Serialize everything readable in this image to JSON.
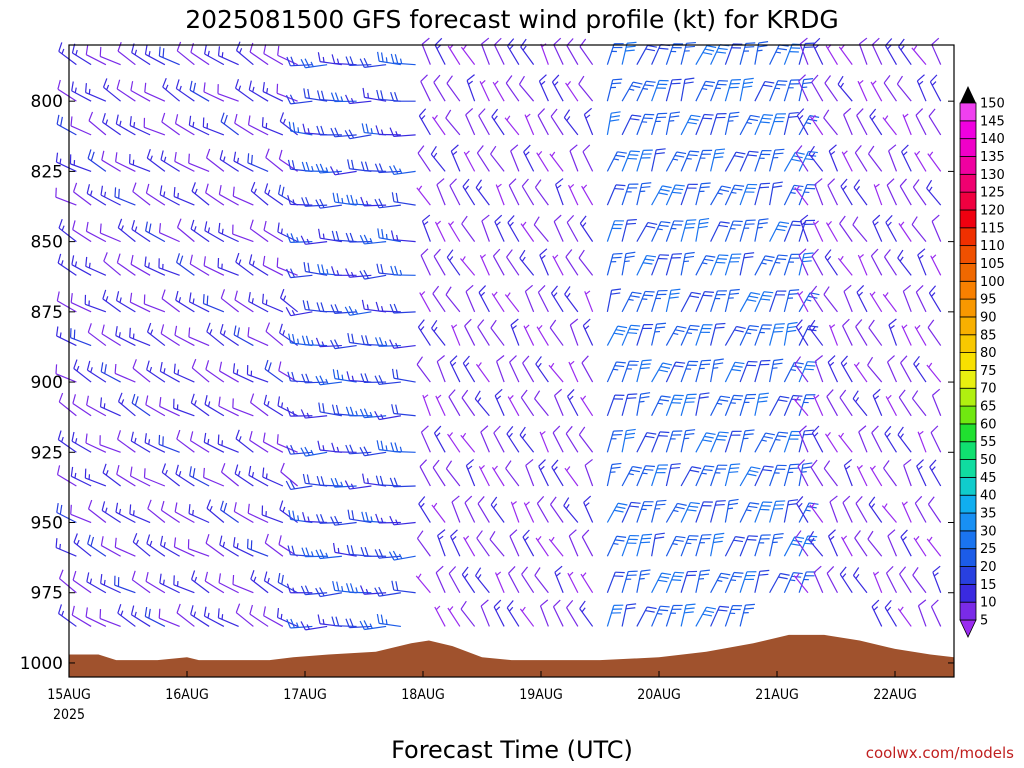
{
  "chart_data": {
    "type": "wind_barb_profile",
    "title": "2025081500 GFS forecast wind profile (kt) for KRDG",
    "xlabel": "Forecast Time (UTC)",
    "ylabel": "",
    "y_axis": {
      "scale": "pressure (inverted)",
      "ylim": [
        780,
        1005
      ],
      "ticks": [
        800,
        825,
        850,
        875,
        900,
        925,
        950,
        975,
        1000
      ]
    },
    "x_axis": {
      "range_days": [
        0,
        7.5
      ],
      "ticks": [
        {
          "label": "15AUG",
          "sub": "2025",
          "day": 0
        },
        {
          "label": "16AUG",
          "day": 1
        },
        {
          "label": "17AUG",
          "day": 2
        },
        {
          "label": "18AUG",
          "day": 3
        },
        {
          "label": "19AUG",
          "day": 4
        },
        {
          "label": "20AUG",
          "day": 5
        },
        {
          "label": "21AUG",
          "day": 6
        },
        {
          "label": "22AUG",
          "day": 7
        }
      ]
    },
    "colorbar": {
      "unit": "kt",
      "labels": [
        "5",
        "10",
        "15",
        "20",
        "25",
        "30",
        "35",
        "40",
        "45",
        "50",
        "55",
        "60",
        "65",
        "70",
        "75",
        "80",
        "85",
        "90",
        "95",
        "100",
        "105",
        "110",
        "115",
        "120",
        "125",
        "130",
        "135",
        "140",
        "145",
        "150"
      ],
      "colors": [
        "#9a2bf0",
        "#7a2be8",
        "#3a2ae0",
        "#2840e0",
        "#1c5ce8",
        "#1a74f0",
        "#1890f4",
        "#10aef0",
        "#10cccc",
        "#10dca0",
        "#10e070",
        "#20e030",
        "#70e810",
        "#b0f010",
        "#e8f010",
        "#f8e000",
        "#f8c800",
        "#f8b000",
        "#f89800",
        "#f88000",
        "#f06800",
        "#f05000",
        "#f03000",
        "#f00010",
        "#f00040",
        "#f00070",
        "#f000a0",
        "#f000c8",
        "#f000e0",
        "#f040f0"
      ]
    },
    "terrain_color": "#a0522d",
    "terrain_top_hPa": [
      [
        0.0,
        997
      ],
      [
        0.25,
        997
      ],
      [
        0.4,
        999
      ],
      [
        0.75,
        999
      ],
      [
        1.0,
        998
      ],
      [
        1.1,
        999
      ],
      [
        1.4,
        999
      ],
      [
        1.7,
        999
      ],
      [
        1.9,
        998
      ],
      [
        2.2,
        997
      ],
      [
        2.6,
        996
      ],
      [
        2.9,
        993
      ],
      [
        3.05,
        992
      ],
      [
        3.25,
        994
      ],
      [
        3.5,
        998
      ],
      [
        3.75,
        999
      ],
      [
        4.1,
        999
      ],
      [
        4.5,
        999
      ],
      [
        5.0,
        998
      ],
      [
        5.4,
        996
      ],
      [
        5.8,
        993
      ],
      [
        6.1,
        990
      ],
      [
        6.4,
        990
      ],
      [
        6.7,
        992
      ],
      [
        7.0,
        995
      ],
      [
        7.3,
        997
      ],
      [
        7.5,
        998
      ]
    ],
    "barb_regimes": {
      "columns_per_day": 8,
      "levels_hPa": [
        775,
        787,
        800,
        812,
        825,
        837,
        850,
        862,
        875,
        887,
        900,
        912,
        925,
        937,
        950,
        962,
        975,
        987,
        1000
      ],
      "segments": [
        {
          "days": [
            0.0,
            2.0
          ],
          "dir_deg": 300,
          "speed_kt": 13,
          "note": "westerly barbs"
        },
        {
          "days": [
            2.0,
            3.0
          ],
          "dir_deg": 270,
          "speed_kt": 20,
          "note": "west barbs, stronger"
        },
        {
          "days": [
            3.0,
            4.5
          ],
          "dir_deg": 330,
          "speed_kt": 10,
          "note": "northwesterly"
        },
        {
          "days": [
            4.5,
            6.2
          ],
          "dir_deg": 20,
          "speed_kt": 25,
          "note": "north-northeasterly, strongest"
        },
        {
          "days": [
            6.2,
            7.5
          ],
          "dir_deg": 330,
          "speed_kt": 10,
          "note": "northwesterly"
        }
      ]
    }
  },
  "credit": "coolwx.com/models"
}
